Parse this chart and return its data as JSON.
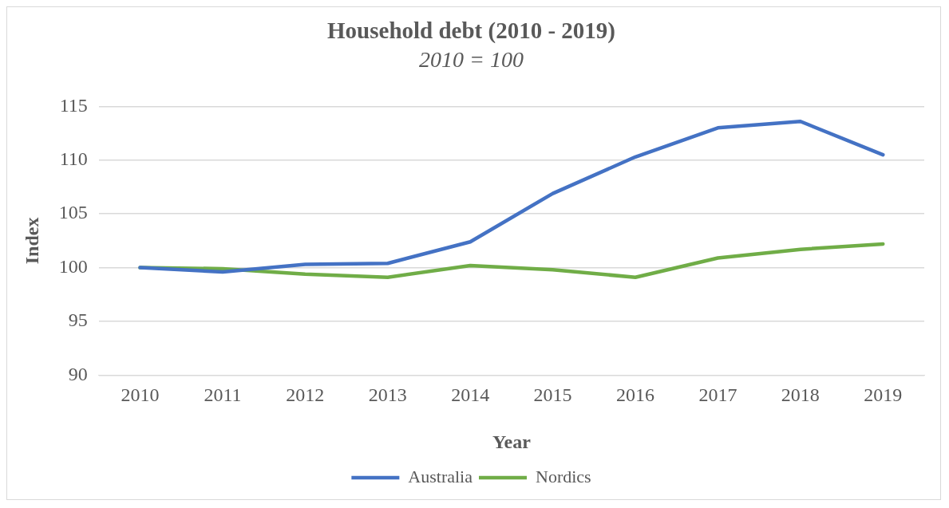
{
  "chart_data": {
    "type": "line",
    "title": "Household debt (2010 - 2019)",
    "subtitle": "2010 = 100",
    "xlabel": "Year",
    "ylabel": "Index",
    "categories": [
      "2010",
      "2011",
      "2012",
      "2013",
      "2014",
      "2015",
      "2016",
      "2017",
      "2018",
      "2019"
    ],
    "series": [
      {
        "name": "Australia",
        "color": "#4472c4",
        "values": [
          100,
          99.6,
          100.3,
          100.4,
          102.4,
          106.9,
          110.3,
          113.0,
          113.6,
          110.5
        ]
      },
      {
        "name": "Nordics",
        "color": "#70ad47",
        "values": [
          100,
          99.9,
          99.4,
          99.1,
          100.2,
          99.8,
          99.1,
          100.9,
          101.7,
          102.2
        ]
      }
    ],
    "ylim": [
      90,
      115
    ],
    "yticks": [
      90,
      95,
      100,
      105,
      110,
      115
    ],
    "grid": "y",
    "legend": "bottom",
    "marker": "none",
    "line_style": "solid"
  }
}
